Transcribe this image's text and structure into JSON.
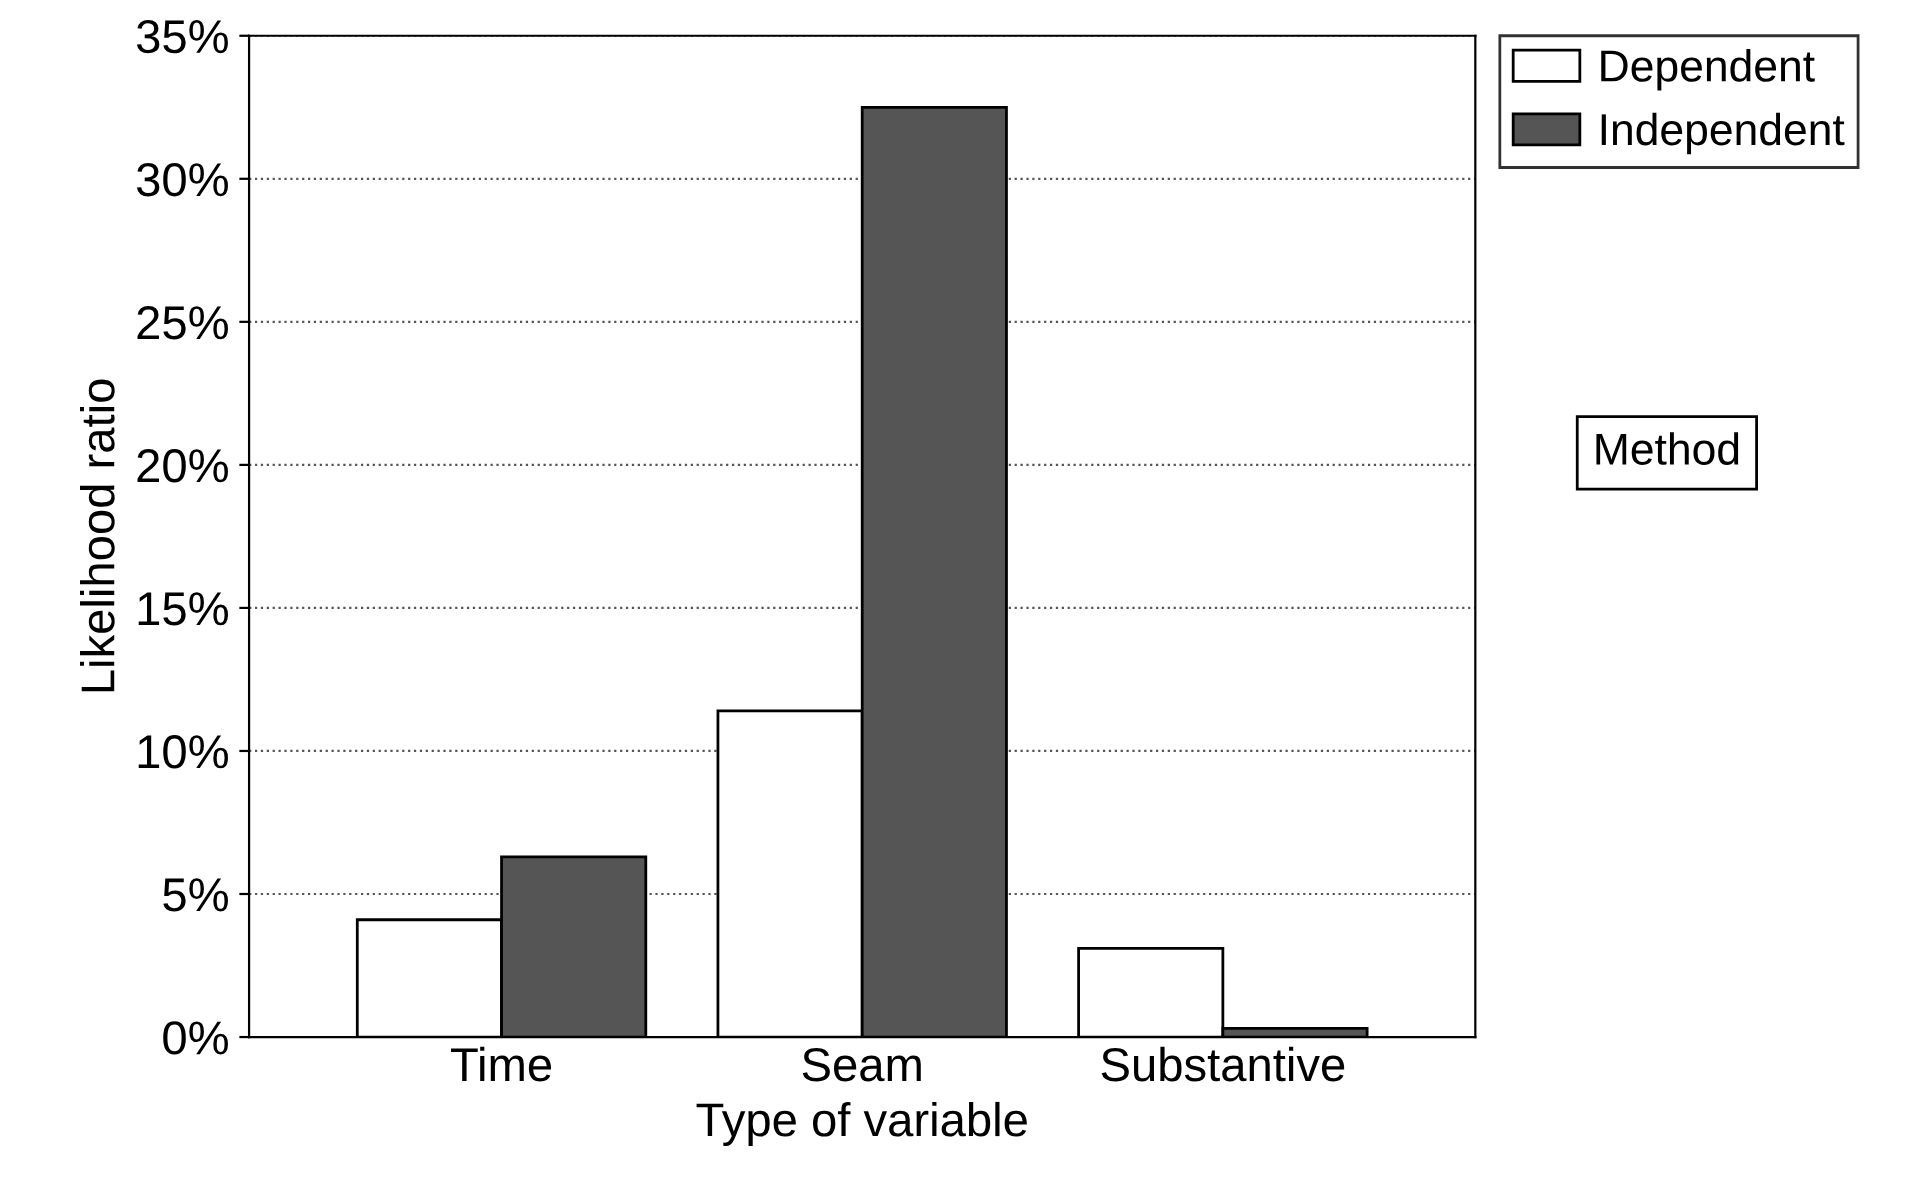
{
  "chart_data": {
    "type": "bar",
    "xlabel": "Type of variable",
    "ylabel": "Likelihood ratio",
    "legend_title": "Method",
    "categories": [
      "Time",
      "Seam",
      "Substantive"
    ],
    "series": [
      {
        "name": "Dependent",
        "color": "#ffffff",
        "values": [
          4.1,
          11.4,
          3.1
        ]
      },
      {
        "name": "Independent",
        "color": "#555555",
        "values": [
          6.3,
          32.5,
          0.3
        ]
      }
    ],
    "ylim": [
      0,
      35
    ],
    "yticks": [
      {
        "value": 0,
        "label": "0%"
      },
      {
        "value": 5,
        "label": "5%"
      },
      {
        "value": 10,
        "label": "10%"
      },
      {
        "value": 15,
        "label": "15%"
      },
      {
        "value": 20,
        "label": "20%"
      },
      {
        "value": 25,
        "label": "25%"
      },
      {
        "value": 30,
        "label": "30%"
      },
      {
        "value": 35,
        "label": "35%"
      }
    ],
    "grid": "y",
    "legend": "top right"
  }
}
